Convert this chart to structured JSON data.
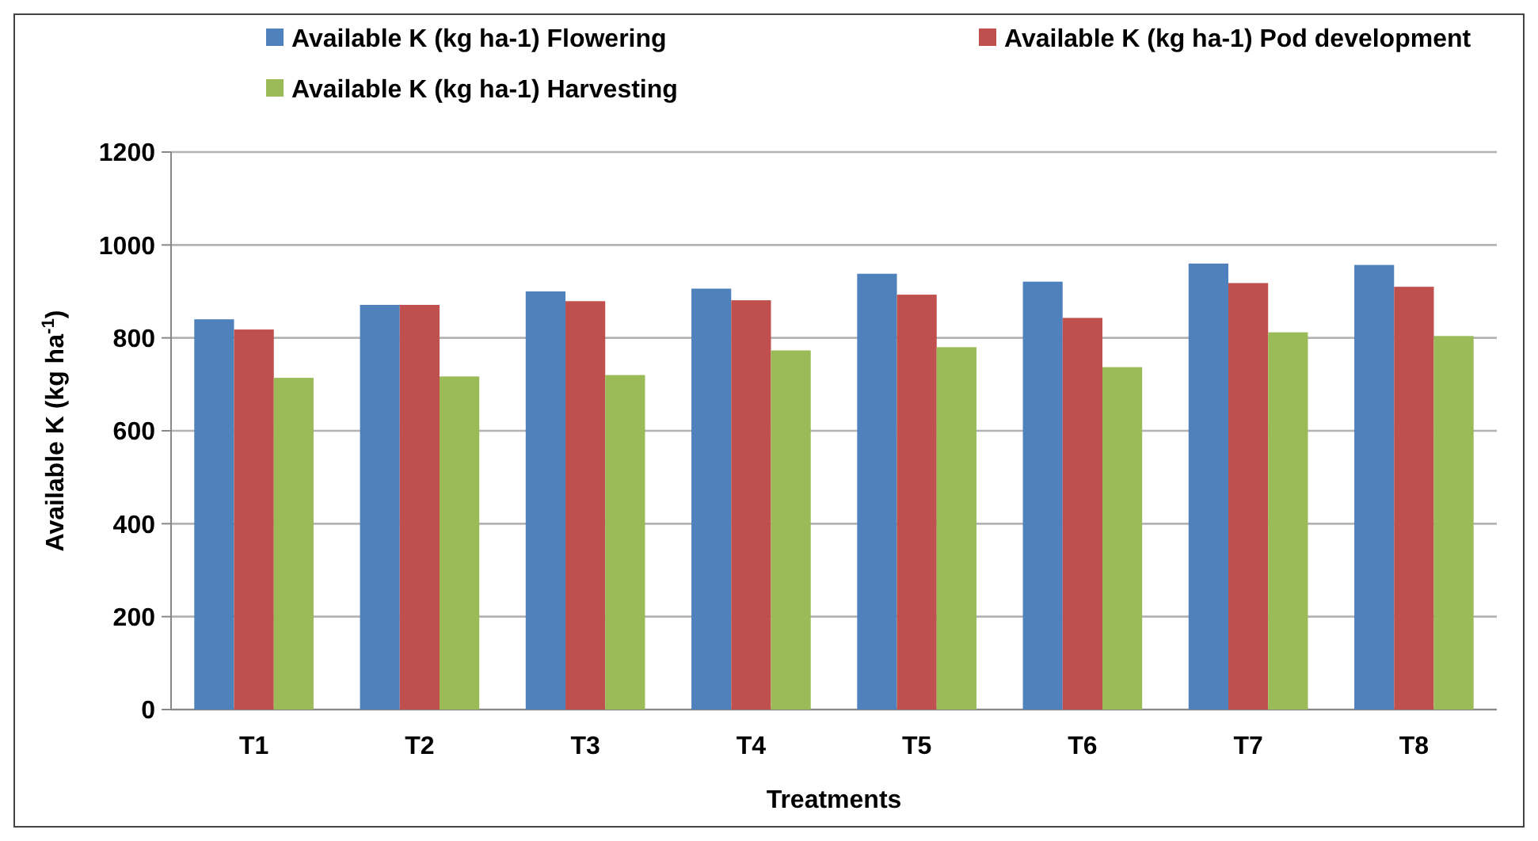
{
  "chart_data": {
    "type": "bar",
    "xlabel": "Treatments",
    "ylabel": "Available K (kg ha$^{-1}$)",
    "categories": [
      "T1",
      "T2",
      "T3",
      "T4",
      "T5",
      "T6",
      "T7",
      "T8"
    ],
    "series": [
      {
        "name": "Available K (kg ha-1) Flowering",
        "color": "#4f81bd",
        "values": [
          840,
          871,
          900,
          906,
          938,
          921,
          960,
          957
        ]
      },
      {
        "name": "Available K (kg ha-1) Pod development",
        "color": "#c0504d",
        "values": [
          818,
          871,
          879,
          881,
          893,
          843,
          918,
          910
        ]
      },
      {
        "name": "Available K (kg ha-1) Harvesting",
        "color": "#9bbb59",
        "values": [
          714,
          717,
          720,
          773,
          780,
          737,
          812,
          804
        ]
      }
    ],
    "ylim": [
      0,
      1200
    ],
    "yticks": [
      0,
      200,
      400,
      600,
      800,
      1000,
      1200
    ],
    "grid": "y",
    "legend": "top"
  }
}
